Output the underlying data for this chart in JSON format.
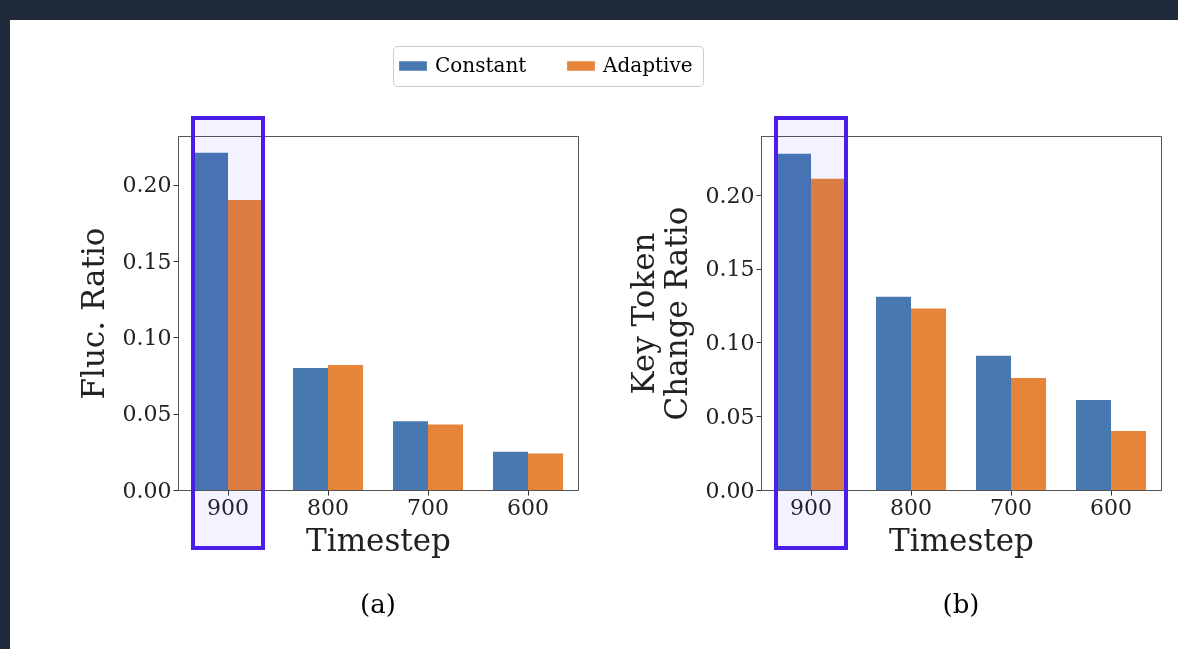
{
  "chart_data": [
    {
      "type": "bar",
      "categories": [
        "900",
        "800",
        "700",
        "600"
      ],
      "xlabel": "Timestep",
      "ylabel": "Fluc. Ratio",
      "annotations": [
        "(a)"
      ],
      "legend": "top",
      "series": [
        {
          "name": "Constant",
          "color": "#4878b0",
          "values": [
            0.221,
            0.08,
            0.045,
            0.025
          ]
        },
        {
          "name": "Adaptive",
          "color": "#e6843a",
          "values": [
            0.19,
            0.082,
            0.043,
            0.024
          ]
        }
      ],
      "bands": [
        {
          "axis": "x",
          "from": "900",
          "to": "900",
          "color": "#4a1ee6"
        }
      ],
      "ylim": [
        0,
        0.232
      ],
      "yticks": [
        {
          "value": 0,
          "label": "0.00"
        },
        {
          "value": 0.05,
          "label": "0.05"
        },
        {
          "value": 0.1,
          "label": "0.10"
        },
        {
          "value": 0.15,
          "label": "0.15"
        },
        {
          "value": 0.2,
          "label": "0.20"
        }
      ]
    },
    {
      "type": "bar",
      "categories": [
        "900",
        "800",
        "700",
        "600"
      ],
      "xlabel": "Timestep",
      "ylabel": "Key Token\nChange Ratio",
      "annotations": [
        "(b)"
      ],
      "legend": "top",
      "series": [
        {
          "name": "Constant",
          "color": "#4878b0",
          "values": [
            0.228,
            0.131,
            0.091,
            0.061
          ]
        },
        {
          "name": "Adaptive",
          "color": "#e6843a",
          "values": [
            0.211,
            0.123,
            0.076,
            0.04
          ]
        }
      ],
      "bands": [
        {
          "axis": "x",
          "from": "900",
          "to": "900",
          "color": "#4a1ee6"
        }
      ],
      "ylim": [
        0,
        0.24
      ],
      "yticks": [
        {
          "value": 0,
          "label": "0.00"
        },
        {
          "value": 0.05,
          "label": "0.05"
        },
        {
          "value": 0.1,
          "label": "0.10"
        },
        {
          "value": 0.15,
          "label": "0.15"
        },
        {
          "value": 0.2,
          "label": "0.20"
        }
      ]
    }
  ]
}
